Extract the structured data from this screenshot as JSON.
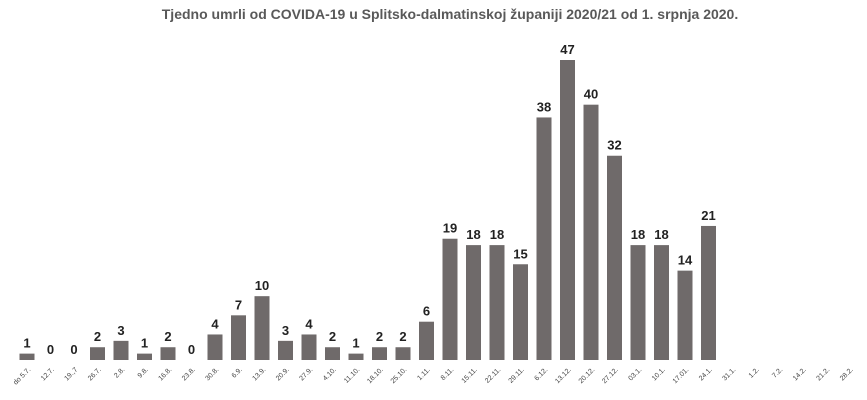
{
  "chart_data": {
    "type": "bar",
    "title": "Tjedno umrli od COVIDA-19 u Splitsko-dalmatinskoj županiji 2020/21 od 1. srpnja 2020.",
    "categories": [
      "do 5.7.",
      "12.7.",
      "19.,7",
      "26.7.",
      "2.8.",
      "9.8.",
      "16.8.",
      "23.8.",
      "30.8.",
      "6.9.",
      "13.9.",
      "20.9.",
      "27.9.",
      "4.10.",
      "11.10.",
      "18.10.",
      "25.10.",
      "1.11.",
      "8.11.",
      "15.11.",
      "22.11.",
      "29.11.",
      "6.12.",
      "13.12.",
      "20.12.",
      "27.12.",
      "03.1.",
      "10.1.",
      "17.01.",
      "24.1.",
      "31.1.",
      "1.2.",
      "7.2.",
      "14.2.",
      "21.2.",
      "28.2."
    ],
    "values": [
      1,
      0,
      0,
      2,
      3,
      1,
      2,
      0,
      4,
      7,
      10,
      3,
      4,
      2,
      1,
      2,
      2,
      6,
      19,
      18,
      18,
      15,
      38,
      47,
      40,
      32,
      18,
      18,
      14,
      21,
      null,
      null,
      null,
      null,
      null,
      null
    ],
    "color": "#6f6a6a"
  }
}
